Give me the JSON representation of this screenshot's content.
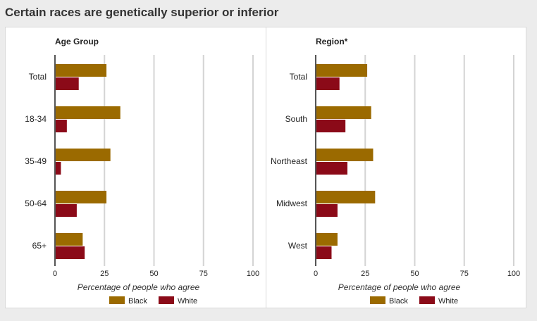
{
  "page": {
    "title": "Certain races are genetically superior or inferior"
  },
  "colors": {
    "black": "#9b6a00",
    "white": "#8b0a18",
    "grid": "#d4d4d4",
    "axis": "#555555"
  },
  "chart_data": [
    {
      "type": "bar",
      "orientation": "horizontal",
      "title": "Age Group",
      "xlabel": "Percentage of people who agree",
      "xlim": [
        0,
        100
      ],
      "xticks": [
        0,
        25,
        50,
        75,
        100
      ],
      "categories": [
        "Total",
        "18-34",
        "35-49",
        "50-64",
        "65+"
      ],
      "series": [
        {
          "name": "Black",
          "values": [
            26,
            33,
            28,
            26,
            14
          ]
        },
        {
          "name": "White",
          "values": [
            12,
            6,
            3,
            11,
            15
          ]
        }
      ],
      "grid": true,
      "legend": "bottom"
    },
    {
      "type": "bar",
      "orientation": "horizontal",
      "title": "Region*",
      "xlabel": "Percentage of people who agree",
      "xlim": [
        0,
        100
      ],
      "xticks": [
        0,
        25,
        50,
        75,
        100
      ],
      "categories": [
        "Total",
        "South",
        "Northeast",
        "Midwest",
        "West"
      ],
      "series": [
        {
          "name": "Black",
          "values": [
            26,
            28,
            29,
            30,
            11
          ]
        },
        {
          "name": "White",
          "values": [
            12,
            15,
            16,
            11,
            8
          ]
        }
      ],
      "grid": true,
      "legend": "bottom"
    }
  ]
}
